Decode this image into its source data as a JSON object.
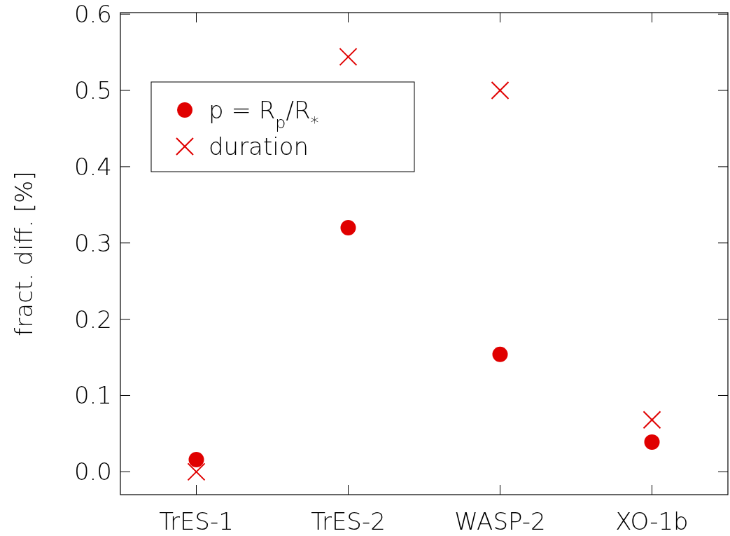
{
  "chart_data": {
    "type": "scatter",
    "ylabel": "fract. diff. [%]",
    "categories": [
      "TrES-1",
      "TrES-2",
      "WASP-2",
      "XO-1b"
    ],
    "series": [
      {
        "name": "p = R$_{p}$/R$_{*}$",
        "color": "#e00000",
        "marker": "circle",
        "values": [
          0.016,
          0.32,
          0.154,
          0.039
        ]
      },
      {
        "name": "duration",
        "color": "#e00000",
        "marker": "cross",
        "values": [
          0.0,
          0.544,
          0.5,
          0.068
        ]
      }
    ],
    "ylim": [
      -0.03,
      0.602
    ],
    "yticks": [
      {
        "value": 0,
        "label": "0.0"
      },
      0.1,
      0.2,
      0.3,
      0.4,
      0.5,
      0.6
    ],
    "legend": "top left"
  }
}
